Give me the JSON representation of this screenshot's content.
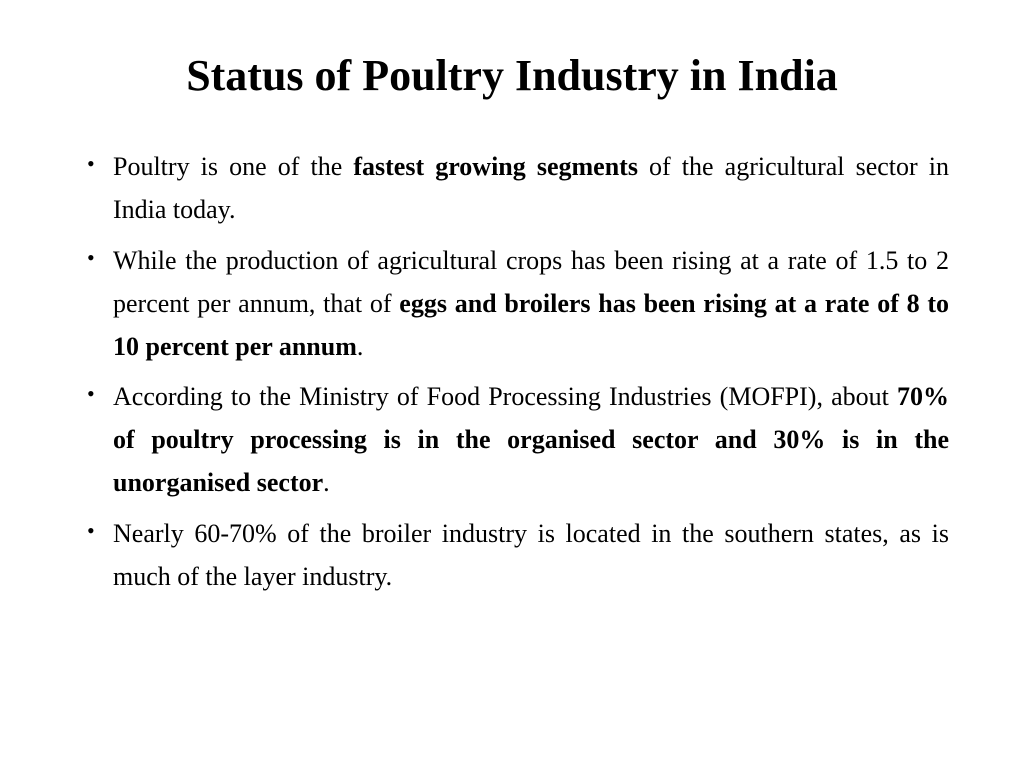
{
  "slide": {
    "title": "Status of Poultry Industry in India",
    "bullets": [
      {
        "segments": [
          {
            "text": "Poultry is one of the ",
            "bold": false
          },
          {
            "text": "fastest growing segments",
            "bold": true
          },
          {
            "text": " of the agricultural sector in India today.",
            "bold": false
          }
        ]
      },
      {
        "segments": [
          {
            "text": "While the production of agricultural crops has been rising at a rate of 1.5 to 2 percent per annum, that of ",
            "bold": false
          },
          {
            "text": "eggs and broilers has been rising at a rate of 8 to 10 percent per annum",
            "bold": true
          },
          {
            "text": ".",
            "bold": false
          }
        ]
      },
      {
        "segments": [
          {
            "text": "According to the Ministry of Food Processing Industries (MOFPI), about ",
            "bold": false
          },
          {
            "text": "70% of poultry processing is in the organised sector and 30% is in the unorganised sector",
            "bold": true
          },
          {
            "text": ".",
            "bold": false
          }
        ]
      },
      {
        "segments": [
          {
            "text": "Nearly 60-70% of the broiler industry is located in the southern states, as is much of the layer industry.",
            "bold": false
          }
        ]
      }
    ]
  },
  "styling": {
    "background_color": "#ffffff",
    "text_color": "#000000",
    "title_fontsize": 44,
    "body_fontsize": 26,
    "font_family": "Times New Roman"
  }
}
